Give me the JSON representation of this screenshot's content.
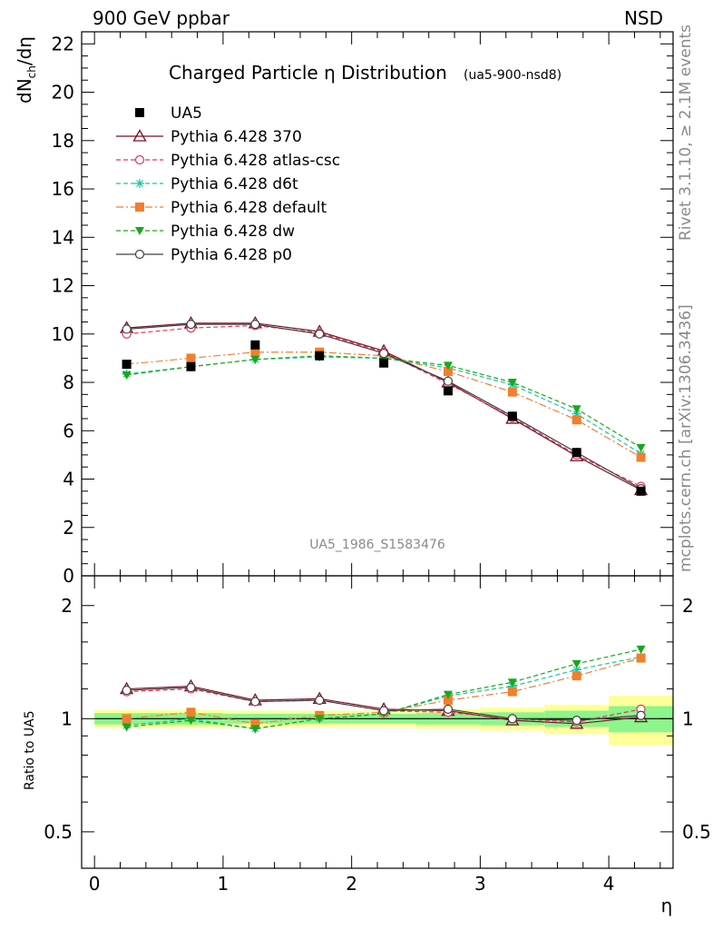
{
  "header": {
    "left": "900 GeV ppbar",
    "right": "NSD"
  },
  "side_text": {
    "version": "Rivet 3.1.10, ≥ 2.1M events",
    "source": "mcplots.cern.ch [arXiv:1306.3436]"
  },
  "chart_data": [
    {
      "type": "line",
      "title": "Charged Particle η Distribution",
      "subtitle": "(ua5-900-nsd8)",
      "ylabel_main": "dN",
      "ylabel_sub": "ch",
      "ylabel_tail": "/dη",
      "analysis_id": "UA5_1986_S1583476",
      "xlim": [
        -0.1,
        4.5
      ],
      "ylim": [
        0,
        22.5
      ],
      "xticks": [
        0,
        1,
        2,
        3,
        4
      ],
      "yticks": [
        0,
        2,
        4,
        6,
        8,
        10,
        12,
        14,
        16,
        18,
        20,
        22
      ],
      "legend_position": "top-left",
      "x": [
        0.25,
        0.75,
        1.25,
        1.75,
        2.25,
        2.75,
        3.25,
        3.75,
        4.25
      ],
      "data": {
        "name": "UA5",
        "color": "#000000",
        "values": [
          8.75,
          8.65,
          9.55,
          9.1,
          8.8,
          7.65,
          6.6,
          5.1,
          3.5
        ]
      },
      "series": [
        {
          "name": "Pythia 6.428 370",
          "color": "#7a1020",
          "marker": "triangle-open",
          "dash": "solid",
          "values": [
            10.25,
            10.45,
            10.45,
            10.1,
            9.3,
            8.0,
            6.5,
            4.95,
            3.55
          ]
        },
        {
          "name": "Pythia 6.428 atlas-csc",
          "color": "#e8345a",
          "marker": "circle-open",
          "dash": "dashed",
          "values": [
            10.0,
            10.25,
            10.35,
            10.05,
            9.25,
            7.95,
            6.55,
            5.0,
            3.7
          ]
        },
        {
          "name": "Pythia 6.428 d6t",
          "color": "#14c8a0",
          "marker": "star",
          "dash": "dashed",
          "values": [
            8.35,
            8.65,
            8.95,
            9.05,
            9.0,
            8.6,
            7.9,
            6.7,
            5.05
          ]
        },
        {
          "name": "Pythia 6.428 default",
          "color": "#f07f30",
          "marker": "square",
          "dash": "dashdot",
          "values": [
            8.75,
            9.0,
            9.25,
            9.25,
            9.1,
            8.45,
            7.6,
            6.45,
            4.9
          ]
        },
        {
          "name": "Pythia 6.428 dw",
          "color": "#17a81b",
          "marker": "triangle-down",
          "dash": "dashed",
          "values": [
            8.3,
            8.65,
            8.95,
            9.1,
            9.0,
            8.7,
            8.0,
            6.9,
            5.3
          ]
        },
        {
          "name": "Pythia 6.428 p0",
          "color": "#404040",
          "marker": "circle-open",
          "dash": "solid",
          "values": [
            10.2,
            10.4,
            10.4,
            10.0,
            9.2,
            8.05,
            6.6,
            5.1,
            3.6
          ]
        }
      ]
    },
    {
      "type": "line",
      "ylabel": "Ratio to UA5",
      "xlabel": "η",
      "scale": "log",
      "ylim": [
        0.4,
        2.4
      ],
      "yticks": [
        0.5,
        1,
        2
      ],
      "xticks": [
        0,
        1,
        2,
        3,
        4
      ],
      "bands": {
        "edges": [
          0,
          0.5,
          1.0,
          1.5,
          2.0,
          2.5,
          3.0,
          3.5,
          4.0,
          4.5
        ],
        "inner_color": "#8cf58c",
        "outer_color": "#ffff99",
        "inner": [
          0.035,
          0.035,
          0.03,
          0.03,
          0.03,
          0.035,
          0.04,
          0.05,
          0.08
        ],
        "outer": [
          0.055,
          0.055,
          0.05,
          0.05,
          0.05,
          0.06,
          0.07,
          0.09,
          0.15
        ]
      },
      "series": [
        {
          "name": "Pythia 6.428 370",
          "values": [
            1.2,
            1.22,
            1.12,
            1.13,
            1.06,
            1.05,
            0.99,
            0.97,
            1.01
          ]
        },
        {
          "name": "Pythia 6.428 atlas-csc",
          "values": [
            1.18,
            1.2,
            1.11,
            1.12,
            1.05,
            1.04,
            1.0,
            0.98,
            1.06
          ]
        },
        {
          "name": "Pythia 6.428 d6t",
          "values": [
            0.96,
            1.0,
            0.94,
            1.0,
            1.03,
            1.15,
            1.22,
            1.35,
            1.46
          ]
        },
        {
          "name": "Pythia 6.428 default",
          "values": [
            1.0,
            1.04,
            0.97,
            1.02,
            1.04,
            1.12,
            1.18,
            1.3,
            1.45
          ]
        },
        {
          "name": "Pythia 6.428 dw",
          "values": [
            0.95,
            0.99,
            0.94,
            1.0,
            1.03,
            1.16,
            1.25,
            1.4,
            1.53
          ]
        },
        {
          "name": "Pythia 6.428 p0",
          "values": [
            1.19,
            1.21,
            1.11,
            1.12,
            1.05,
            1.06,
            1.0,
            0.99,
            1.02
          ]
        }
      ]
    }
  ]
}
